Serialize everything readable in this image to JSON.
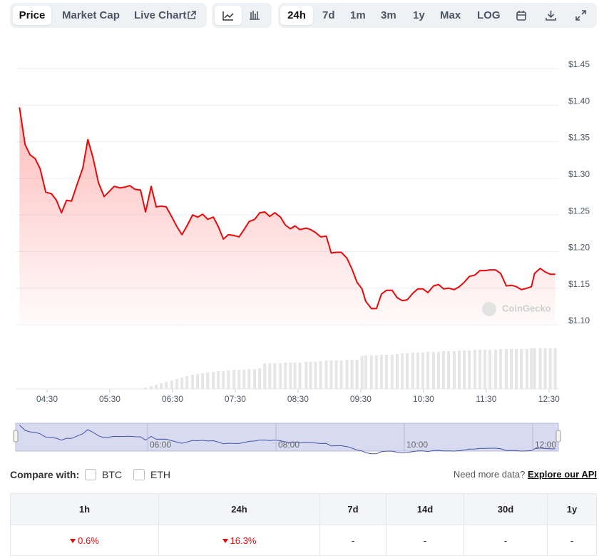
{
  "toolbar": {
    "tabs": [
      "Price",
      "Market Cap",
      "Live Chart"
    ],
    "ranges": [
      "24h",
      "7d",
      "1m",
      "3m",
      "1y",
      "Max",
      "LOG"
    ]
  },
  "chart_data": {
    "type": "line",
    "x": [
      4.06,
      4.15,
      4.23,
      4.31,
      4.39,
      4.48,
      4.57,
      4.65,
      4.73,
      4.81,
      4.89,
      4.98,
      5.07,
      5.15,
      5.23,
      5.32,
      5.41,
      5.49,
      5.57,
      5.66,
      5.74,
      5.82,
      5.9,
      5.99,
      6.07,
      6.16,
      6.24,
      6.32,
      6.4,
      6.49,
      6.57,
      6.65,
      6.73,
      6.82,
      6.9,
      6.98,
      7.06,
      7.15,
      7.23,
      7.31,
      7.39,
      7.48,
      7.56,
      7.64,
      7.72,
      7.81,
      7.89,
      7.97,
      8.05,
      8.13,
      8.22,
      8.3,
      8.38,
      8.45,
      8.53,
      8.63,
      8.7,
      8.78,
      8.86,
      8.95,
      9.03,
      9.11,
      9.19,
      9.28,
      9.36,
      9.44,
      9.52,
      9.58,
      9.67,
      9.75,
      9.83,
      9.91,
      10.0,
      10.08,
      10.16,
      10.24,
      10.33,
      10.41,
      10.49,
      10.57,
      10.66,
      10.74,
      10.82,
      10.9,
      10.99,
      11.07,
      11.15,
      11.23,
      11.32,
      11.4,
      11.48,
      11.56,
      11.65,
      11.73,
      11.82,
      11.9,
      11.98,
      12.06,
      12.15,
      12.22,
      12.27,
      12.36,
      12.44,
      12.52,
      12.6
    ],
    "series": [
      {
        "color": "#e8090b",
        "values": [
          1.397,
          1.346,
          1.332,
          1.327,
          1.313,
          1.281,
          1.279,
          1.27,
          1.253,
          1.27,
          1.269,
          1.292,
          1.314,
          1.353,
          1.329,
          1.294,
          1.275,
          1.282,
          1.289,
          1.287,
          1.288,
          1.29,
          1.285,
          1.284,
          1.254,
          1.289,
          1.261,
          1.262,
          1.261,
          1.247,
          1.234,
          1.223,
          1.235,
          1.25,
          1.247,
          1.251,
          1.244,
          1.247,
          1.234,
          1.217,
          1.223,
          1.222,
          1.22,
          1.23,
          1.241,
          1.244,
          1.253,
          1.254,
          1.248,
          1.253,
          1.247,
          1.236,
          1.231,
          1.235,
          1.23,
          1.232,
          1.23,
          1.226,
          1.22,
          1.221,
          1.198,
          1.199,
          1.199,
          1.191,
          1.176,
          1.158,
          1.149,
          1.132,
          1.122,
          1.122,
          1.142,
          1.147,
          1.147,
          1.137,
          1.133,
          1.134,
          1.143,
          1.149,
          1.149,
          1.144,
          1.153,
          1.155,
          1.149,
          1.15,
          1.148,
          1.152,
          1.158,
          1.166,
          1.168,
          1.174,
          1.174,
          1.175,
          1.175,
          1.17,
          1.153,
          1.154,
          1.152,
          1.148,
          1.15,
          1.152,
          1.17,
          1.177,
          1.172,
          1.169,
          1.169
        ]
      },
      {
        "type": "bar",
        "axis": "y2",
        "color": "#e6e6e6",
        "values": [
          null,
          null,
          null,
          null,
          null,
          null,
          null,
          null,
          null,
          null,
          null,
          null,
          null,
          null,
          null,
          null,
          null,
          null,
          null,
          null,
          null,
          null,
          null,
          null,
          2,
          4,
          6,
          8,
          10,
          12,
          14,
          16,
          18,
          20,
          21,
          22,
          23,
          24,
          25,
          25,
          26,
          27,
          27,
          27,
          28,
          28,
          29,
          36,
          36,
          36,
          36,
          37,
          37,
          37,
          37,
          38,
          38,
          38,
          39,
          40,
          40,
          40,
          40,
          41,
          41,
          41,
          46,
          47,
          47,
          47,
          48,
          48,
          48,
          49,
          50,
          50,
          51,
          51,
          51,
          52,
          52,
          52,
          53,
          53,
          53,
          54,
          54,
          54,
          55,
          55,
          55,
          55,
          55,
          56,
          56,
          56,
          56,
          56,
          56,
          57,
          57,
          57,
          57,
          57,
          57
        ]
      }
    ],
    "xlim": [
      4,
      12.65
    ],
    "xticks": [
      {
        "value": 4.5,
        "label": "04:30"
      },
      {
        "value": 5.5,
        "label": "05:30"
      },
      {
        "value": 6.5,
        "label": "06:30"
      },
      {
        "value": 7.5,
        "label": "07:30"
      },
      {
        "value": 8.5,
        "label": "08:30"
      },
      {
        "value": 9.5,
        "label": "09:30"
      },
      {
        "value": 10.5,
        "label": "10:30"
      },
      {
        "value": 11.5,
        "label": "11:30"
      },
      {
        "value": 12.5,
        "label": "12:30"
      }
    ],
    "ylim": [
      1.1,
      1.45
    ],
    "yticks": [
      {
        "value": 1.45,
        "label": "$1.45"
      },
      {
        "value": 1.4,
        "label": "$1.40"
      },
      {
        "value": 1.35,
        "label": "$1.35"
      },
      {
        "value": 1.3,
        "label": "$1.30"
      },
      {
        "value": 1.25,
        "label": "$1.25"
      },
      {
        "value": 1.2,
        "label": "$1.20"
      },
      {
        "value": 1.15,
        "label": "$1.15"
      },
      {
        "value": 1.1,
        "label": "$1.10"
      }
    ],
    "y2lim": [
      0,
      100
    ],
    "grid": true,
    "watermark": "CoinGecko",
    "navigator": {
      "xticks": [
        {
          "value": 6,
          "label": "06:00"
        },
        {
          "value": 8,
          "label": "08:00"
        },
        {
          "value": 10,
          "label": "10:00"
        },
        {
          "value": 12,
          "label": "12:00"
        }
      ]
    }
  },
  "compare": {
    "label": "Compare with:",
    "options": [
      "BTC",
      "ETH"
    ],
    "prompt": "Need more data?",
    "link": "Explore our API"
  },
  "table": {
    "headers": [
      "1h",
      "24h",
      "7d",
      "14d",
      "30d",
      "1y"
    ],
    "rows": [
      [
        "0.6%",
        "16.3%",
        "-",
        "-",
        "-",
        "-"
      ]
    ]
  }
}
